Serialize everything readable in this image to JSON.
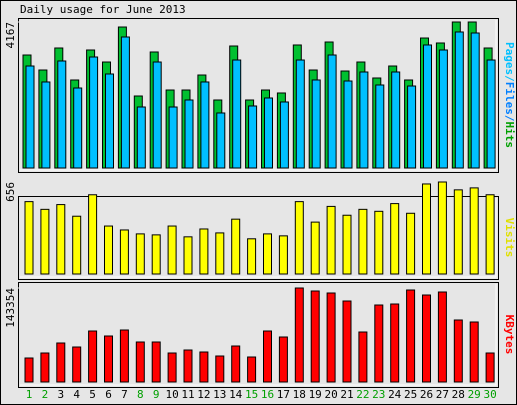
{
  "chart_data": [
    {
      "type": "bar",
      "title": "Daily usage for June 2013",
      "ylabel_parts": [
        {
          "text": "Pages",
          "color": "#00c0ff"
        },
        {
          "text": "/",
          "color": "#00c0ff"
        },
        {
          "text": "Files",
          "color": "#0080ff"
        },
        {
          "text": "/",
          "color": "#0080ff"
        },
        {
          "text": "Hits",
          "color": "#00a000"
        }
      ],
      "ylim": [
        0,
        4167
      ],
      "yticks": [
        4167
      ],
      "series": [
        {
          "color": "#00c030",
          "values": [
            3225,
            2797,
            3425,
            2512,
            3368,
            3025,
            4024,
            2055,
            3311,
            2226,
            2226,
            2654,
            1941,
            3482,
            1941,
            2226,
            2141,
            3511,
            2797,
            3596,
            2768,
            3025,
            2569,
            2911,
            2512,
            3710,
            3568,
            4167,
            4167,
            3425
          ]
        },
        {
          "color": "#00c0ff",
          "values": [
            2911,
            2455,
            3054,
            2283,
            3168,
            2683,
            3739,
            1741,
            3025,
            1741,
            1941,
            2455,
            1570,
            3082,
            1770,
            1998,
            1884,
            3082,
            2512,
            3225,
            2483,
            2740,
            2369,
            2740,
            2340,
            3511,
            3368,
            3882,
            3853,
            3082
          ]
        }
      ]
    },
    {
      "type": "bar",
      "ylabel": "Visits",
      "ylabel_color": "#e0e000",
      "ylim": [
        0,
        656
      ],
      "yticks": [
        656
      ],
      "series": [
        {
          "color": "#ffff00",
          "values": [
            516,
            461,
            495,
            412,
            565,
            342,
            314,
            286,
            279,
            342,
            265,
            321,
            293,
            391,
            251,
            286,
            272,
            516,
            370,
            482,
            419,
            461,
            447,
            502,
            433,
            642,
            656,
            600,
            614,
            565
          ]
        }
      ]
    },
    {
      "type": "bar",
      "ylabel": "KBytes",
      "ylabel_color": "#ff0000",
      "ylim": [
        0,
        143354
      ],
      "yticks": [
        143354
      ],
      "series": [
        {
          "color": "#ff0000",
          "values": [
            36601,
            44226,
            59477,
            53376,
            77777,
            70152,
            79302,
            61002,
            61002,
            44226,
            48801,
            45751,
            39651,
            54901,
            38126,
            77777,
            68627,
            143354,
            138779,
            135729,
            123528,
            76252,
            117428,
            118953,
            140304,
            132678,
            137253,
            94553,
            91503,
            44226
          ]
        }
      ],
      "categories": [
        "1",
        "2",
        "3",
        "4",
        "5",
        "6",
        "7",
        "8",
        "9",
        "10",
        "11",
        "12",
        "13",
        "14",
        "15",
        "16",
        "17",
        "18",
        "19",
        "20",
        "21",
        "22",
        "23",
        "24",
        "25",
        "26",
        "27",
        "28",
        "29",
        "30"
      ],
      "category_colors": [
        "#00a000",
        "#00a000",
        "#000000",
        "#000000",
        "#000000",
        "#000000",
        "#000000",
        "#00a000",
        "#00a000",
        "#000000",
        "#000000",
        "#000000",
        "#000000",
        "#000000",
        "#00a000",
        "#00a000",
        "#000000",
        "#000000",
        "#000000",
        "#000000",
        "#000000",
        "#00a000",
        "#00a000",
        "#000000",
        "#000000",
        "#000000",
        "#000000",
        "#000000",
        "#00a000",
        "#00a000"
      ]
    }
  ]
}
